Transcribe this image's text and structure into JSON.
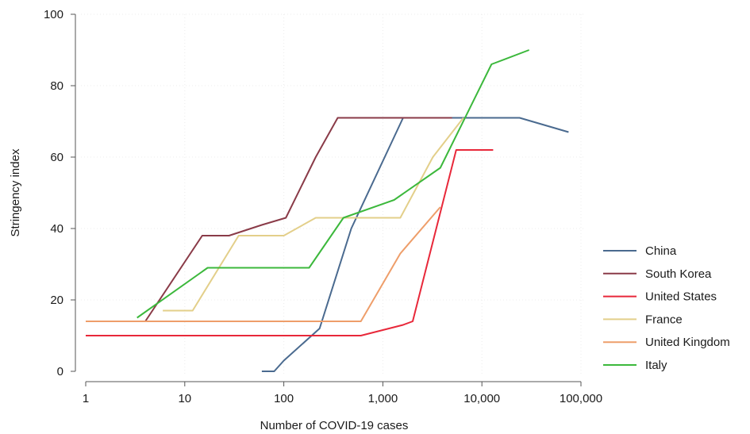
{
  "chart_data": {
    "type": "line",
    "xlabel": "Number of COVID-19 cases",
    "ylabel": "Stringency index",
    "x_scale": "log",
    "xlim": [
      1,
      100000
    ],
    "ylim": [
      0,
      100
    ],
    "x_ticks": [
      1,
      10,
      100,
      1000,
      10000,
      100000
    ],
    "x_tick_labels": [
      "1",
      "10",
      "100",
      "1,000",
      "10,000",
      "100,000"
    ],
    "y_ticks": [
      0,
      20,
      40,
      60,
      80,
      100
    ],
    "y_tick_labels": [
      "0",
      "20",
      "40",
      "60",
      "80",
      "100"
    ],
    "grid": true,
    "legend_position": "right",
    "series": [
      {
        "name": "China",
        "color": "#4a6a8f",
        "x": [
          60,
          80,
          100,
          230,
          480,
          1600,
          24000,
          75000
        ],
        "y": [
          0,
          0,
          3,
          12,
          40,
          71,
          71,
          67
        ]
      },
      {
        "name": "South Korea",
        "color": "#8a3b48",
        "x": [
          1,
          4,
          15,
          28,
          60,
          105,
          210,
          350,
          1500,
          5000
        ],
        "y": [
          14,
          14,
          38,
          38,
          41,
          43,
          60,
          71,
          71,
          71
        ]
      },
      {
        "name": "United States",
        "color": "#e8283a",
        "x": [
          1,
          30,
          600,
          1600,
          2000,
          5500,
          13000
        ],
        "y": [
          10,
          10,
          10,
          13,
          14,
          62,
          62
        ]
      },
      {
        "name": "France",
        "color": "#e3cf8a",
        "x": [
          6,
          12,
          35,
          100,
          210,
          700,
          1500,
          3200,
          6500
        ],
        "y": [
          17,
          17,
          38,
          38,
          43,
          43,
          43,
          60,
          71
        ]
      },
      {
        "name": "United Kingdom",
        "color": "#ee9e6a",
        "x": [
          1,
          600,
          1500,
          3800
        ],
        "y": [
          14,
          14,
          33,
          46
        ]
      },
      {
        "name": "Italy",
        "color": "#3cb83c",
        "x": [
          3.3,
          17,
          40,
          90,
          180,
          400,
          1300,
          3800,
          12500,
          30000
        ],
        "y": [
          15,
          29,
          29,
          29,
          29,
          43,
          48,
          57,
          86,
          90
        ]
      }
    ]
  }
}
